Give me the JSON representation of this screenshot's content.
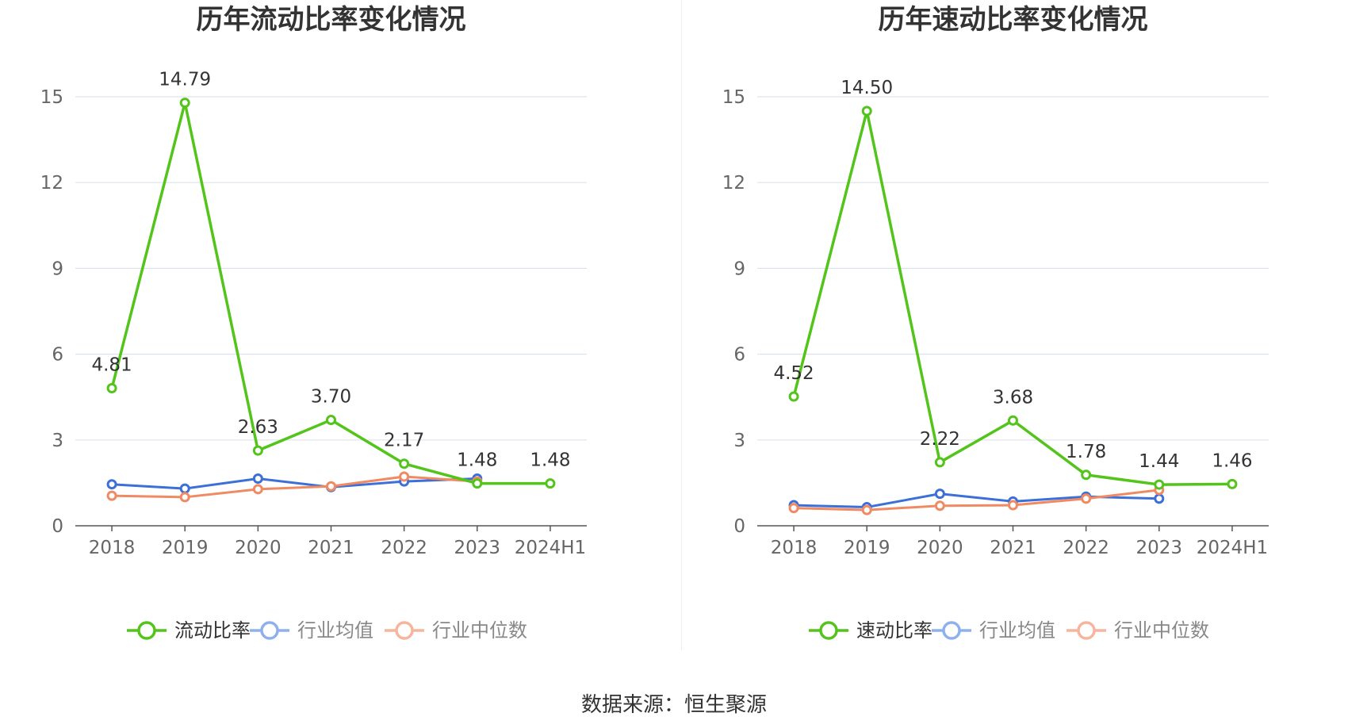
{
  "source_prefix": "数据来源：",
  "source_name": "恒生聚源",
  "chart_data": [
    {
      "type": "line",
      "title": "历年流动比率变化情况",
      "categories": [
        "2018",
        "2019",
        "2020",
        "2021",
        "2022",
        "2023",
        "2024H1"
      ],
      "ylim": [
        0,
        15
      ],
      "yticks": [
        0,
        3,
        6,
        9,
        12,
        15
      ],
      "grid": true,
      "legend_position": "bottom",
      "series": [
        {
          "name": "流动比率",
          "color": "#52c41a",
          "values": [
            4.81,
            14.79,
            2.63,
            3.7,
            2.17,
            1.48,
            1.48
          ],
          "labels": [
            "4.81",
            "14.79",
            "2.63",
            "3.70",
            "2.17",
            "1.48",
            "1.48"
          ]
        },
        {
          "name": "行业均值",
          "color": "#3c6fd8",
          "legend_color": "#8fb0ee",
          "values": [
            1.45,
            1.3,
            1.65,
            1.35,
            1.55,
            1.65,
            null
          ]
        },
        {
          "name": "行业中位数",
          "color": "#f08a63",
          "legend_color": "#f6b59c",
          "values": [
            1.05,
            1.0,
            1.28,
            1.38,
            1.72,
            1.55,
            null
          ]
        }
      ]
    },
    {
      "type": "line",
      "title": "历年速动比率变化情况",
      "categories": [
        "2018",
        "2019",
        "2020",
        "2021",
        "2022",
        "2023",
        "2024H1"
      ],
      "ylim": [
        0,
        15
      ],
      "yticks": [
        0,
        3,
        6,
        9,
        12,
        15
      ],
      "grid": true,
      "legend_position": "bottom",
      "series": [
        {
          "name": "速动比率",
          "color": "#52c41a",
          "values": [
            4.52,
            14.5,
            2.22,
            3.68,
            1.78,
            1.44,
            1.46
          ],
          "labels": [
            "4.52",
            "14.50",
            "2.22",
            "3.68",
            "1.78",
            "1.44",
            "1.46"
          ]
        },
        {
          "name": "行业均值",
          "color": "#3c6fd8",
          "legend_color": "#8fb0ee",
          "values": [
            0.72,
            0.65,
            1.12,
            0.85,
            1.02,
            0.95,
            null
          ]
        },
        {
          "name": "行业中位数",
          "color": "#f08a63",
          "legend_color": "#f6b59c",
          "values": [
            0.62,
            0.55,
            0.7,
            0.72,
            0.95,
            1.25,
            null
          ]
        }
      ]
    }
  ]
}
